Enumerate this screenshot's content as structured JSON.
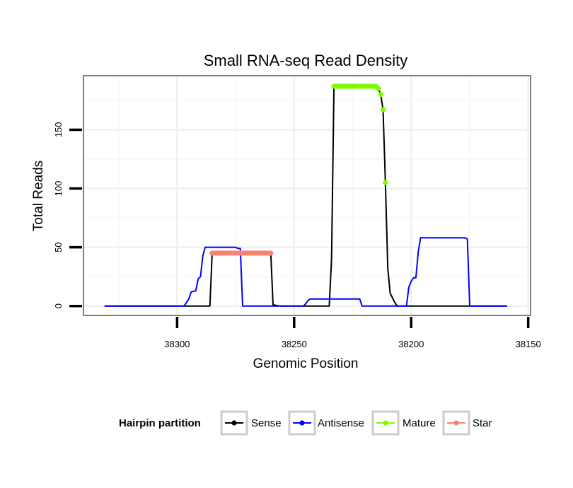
{
  "chart_data": {
    "type": "line",
    "title": "Small RNA-seq Read Density",
    "xlabel": "Genomic Position",
    "ylabel": "Total Reads",
    "x_reversed": true,
    "xlim": [
      38340,
      38149
    ],
    "ylim": [
      -8,
      196
    ],
    "xticks": [
      38300,
      38250,
      38200,
      38150
    ],
    "xtick_labels": [
      "38300",
      "38250",
      "38200",
      "38150"
    ],
    "yticks": [
      0,
      50,
      100,
      150
    ],
    "ytick_labels": [
      "0",
      "50",
      "100",
      "150"
    ],
    "legend": {
      "title": "Hairpin partition",
      "placement": "bottom",
      "entries": [
        "Sense",
        "Antisense",
        "Mature",
        "Star"
      ]
    },
    "series": [
      {
        "name": "Sense",
        "color": "#000000",
        "style": "line",
        "points": [
          [
            38331,
            0
          ],
          [
            38286,
            0
          ],
          [
            38285,
            46
          ],
          [
            38260,
            46
          ],
          [
            38259,
            1
          ],
          [
            38256,
            0
          ],
          [
            38235,
            0
          ],
          [
            38234,
            40
          ],
          [
            38233,
            187
          ],
          [
            38215,
            187
          ],
          [
            38214,
            185
          ],
          [
            38213,
            180
          ],
          [
            38212,
            167
          ],
          [
            38211,
            105
          ],
          [
            38210,
            32
          ],
          [
            38209,
            11
          ],
          [
            38207,
            3
          ],
          [
            38206,
            0
          ],
          [
            38159,
            0
          ]
        ]
      },
      {
        "name": "Antisense",
        "color": "#0000ff",
        "style": "line",
        "points": [
          [
            38331,
            0
          ],
          [
            38297,
            0
          ],
          [
            38296,
            3
          ],
          [
            38295,
            6
          ],
          [
            38294,
            12
          ],
          [
            38292,
            13
          ],
          [
            38291,
            23
          ],
          [
            38290,
            25
          ],
          [
            38289,
            43
          ],
          [
            38288,
            50
          ],
          [
            38275,
            50
          ],
          [
            38274,
            49
          ],
          [
            38273,
            49
          ],
          [
            38272,
            0
          ],
          [
            38246,
            0
          ],
          [
            38245,
            2
          ],
          [
            38244,
            5
          ],
          [
            38243,
            6
          ],
          [
            38222,
            6
          ],
          [
            38221,
            0
          ],
          [
            38204,
            0
          ],
          [
            38202,
            0
          ],
          [
            38201,
            16
          ],
          [
            38200,
            21
          ],
          [
            38199,
            24
          ],
          [
            38198,
            24
          ],
          [
            38197,
            46
          ],
          [
            38196,
            58
          ],
          [
            38177,
            58
          ],
          [
            38176,
            57
          ],
          [
            38175,
            0
          ],
          [
            38159,
            0
          ]
        ]
      },
      {
        "name": "Mature",
        "color": "#7cfc00",
        "style": "points",
        "points": [
          [
            38233,
            187
          ],
          [
            38232,
            187
          ],
          [
            38231,
            187
          ],
          [
            38230,
            187
          ],
          [
            38229,
            187
          ],
          [
            38228,
            187
          ],
          [
            38227,
            187
          ],
          [
            38226,
            187
          ],
          [
            38225,
            187
          ],
          [
            38224,
            187
          ],
          [
            38223,
            187
          ],
          [
            38222,
            187
          ],
          [
            38221,
            187
          ],
          [
            38220,
            187
          ],
          [
            38219,
            187
          ],
          [
            38218,
            187
          ],
          [
            38217,
            187
          ],
          [
            38216,
            187
          ],
          [
            38215,
            187
          ],
          [
            38214,
            185
          ],
          [
            38213,
            180
          ],
          [
            38212,
            167
          ],
          [
            38211,
            105
          ]
        ]
      },
      {
        "name": "Star",
        "color": "#fa8072",
        "style": "points",
        "points": [
          [
            38285,
            45
          ],
          [
            38284,
            45
          ],
          [
            38283,
            45
          ],
          [
            38282,
            45
          ],
          [
            38281,
            45
          ],
          [
            38280,
            45
          ],
          [
            38279,
            45
          ],
          [
            38278,
            45
          ],
          [
            38277,
            45
          ],
          [
            38276,
            45
          ],
          [
            38275,
            45
          ],
          [
            38274,
            45
          ],
          [
            38273,
            45
          ],
          [
            38272,
            45
          ],
          [
            38271,
            45
          ],
          [
            38270,
            45
          ],
          [
            38269,
            45
          ],
          [
            38268,
            45
          ],
          [
            38267,
            45
          ],
          [
            38266,
            45
          ],
          [
            38265,
            45
          ],
          [
            38264,
            45
          ],
          [
            38263,
            45
          ],
          [
            38262,
            45
          ],
          [
            38261,
            45
          ],
          [
            38260,
            45
          ]
        ]
      }
    ]
  }
}
